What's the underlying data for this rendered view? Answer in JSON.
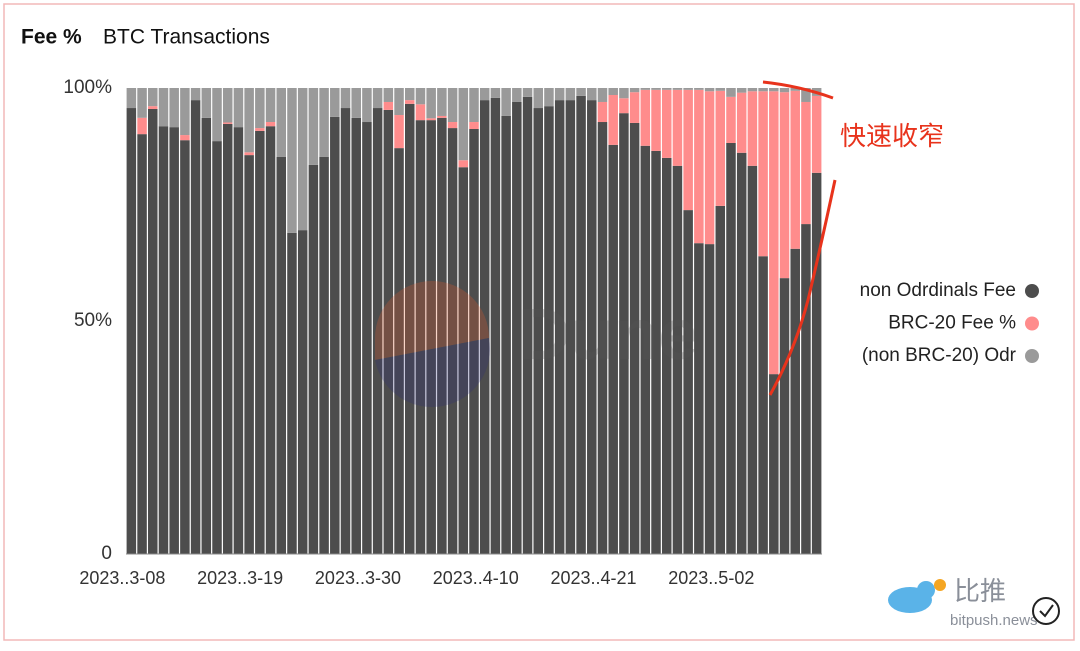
{
  "chart_data": {
    "type": "stacked_bar",
    "title": "Fee %",
    "subtitle": "BTC Transactions",
    "categories": [
      "2023..3-08",
      null,
      null,
      null,
      null,
      null,
      null,
      null,
      null,
      null,
      null,
      "2023..3-19",
      null,
      null,
      null,
      null,
      null,
      null,
      null,
      null,
      null,
      null,
      "2023..3-30",
      null,
      null,
      null,
      null,
      null,
      null,
      null,
      null,
      null,
      null,
      "2023..4-10",
      null,
      null,
      null,
      null,
      null,
      null,
      null,
      null,
      null,
      null,
      "2023..4-21",
      null,
      null,
      null,
      null,
      null,
      null,
      null,
      null,
      null,
      null,
      "2023..5-02",
      null,
      null,
      null,
      null,
      null,
      null,
      null,
      null,
      null
    ],
    "series": [
      {
        "name": "non Odrdinals Fee",
        "color": "#4d4d4d",
        "values": [
          95.7,
          90.1,
          95.5,
          91.8,
          91.6,
          88.8,
          97.4,
          93.6,
          88.6,
          92.3,
          91.6,
          85.6,
          90.8,
          91.8,
          85.2,
          68.9,
          69.5,
          83.5,
          85.2,
          93.8,
          95.7,
          93.6,
          92.7,
          95.7,
          95.3,
          87.1,
          96.6,
          93.1,
          93.1,
          93.6,
          91.4,
          83.0,
          91.2,
          97.4,
          97.9,
          94.0,
          97.0,
          98.1,
          95.7,
          96.1,
          97.4,
          97.4,
          98.3,
          97.4,
          92.7,
          87.8,
          94.6,
          92.5,
          87.6,
          86.5,
          85.0,
          83.3,
          73.8,
          66.7,
          66.5,
          74.7,
          88.2,
          86.1,
          83.3,
          63.9,
          38.6,
          59.2,
          65.5,
          70.8,
          81.8
        ]
      },
      {
        "name": "BRC-20 Fee %",
        "color": "#ff8c8c",
        "values": [
          0,
          3.5,
          0.6,
          0,
          0,
          1.1,
          0,
          0,
          0,
          0.3,
          0,
          0.6,
          0.6,
          0.9,
          0,
          0,
          0,
          0,
          0,
          0,
          0,
          0,
          0,
          0,
          1.7,
          7.1,
          0.8,
          3.4,
          0.4,
          0.4,
          1.3,
          1.5,
          1.5,
          0,
          0,
          0,
          0,
          0,
          0,
          0,
          0,
          0,
          0,
          0,
          4.3,
          10.7,
          3.2,
          6.6,
          12.0,
          13.1,
          14.6,
          16.3,
          25.8,
          32.9,
          32.8,
          24.7,
          9.9,
          12.9,
          16.0,
          35.4,
          60.7,
          39.9,
          33.9,
          26.2,
          16.5
        ]
      },
      {
        "name": "(non BRC-20) Odr",
        "color": "#9a9a9a",
        "values": [
          4.3,
          6.4,
          3.9,
          8.2,
          8.4,
          10.1,
          2.6,
          6.4,
          11.4,
          7.4,
          8.4,
          13.8,
          8.6,
          7.3,
          14.8,
          31.1,
          30.5,
          16.5,
          14.8,
          6.2,
          4.3,
          6.4,
          7.3,
          4.3,
          3.0,
          5.8,
          2.6,
          3.5,
          6.5,
          6.0,
          7.3,
          15.5,
          7.3,
          2.6,
          2.1,
          6.0,
          3.0,
          1.9,
          4.3,
          3.9,
          2.6,
          2.6,
          1.7,
          2.6,
          3.0,
          1.5,
          2.2,
          0.9,
          0.4,
          0.4,
          0.4,
          0.4,
          0.4,
          0.4,
          0.7,
          0.6,
          1.9,
          1.0,
          0.7,
          0.7,
          0.7,
          0.9,
          0.6,
          3.0,
          1.7
        ]
      }
    ],
    "ylim": [
      0,
      100
    ],
    "yticks": [
      0,
      {
        "value": 50,
        "label": "50%"
      },
      {
        "value": 100,
        "label": "100%"
      }
    ],
    "legend": "right",
    "annotations": [
      "快速收窄"
    ],
    "watermarks": [
      "Dune",
      "比推",
      "bitpush.news"
    ]
  }
}
